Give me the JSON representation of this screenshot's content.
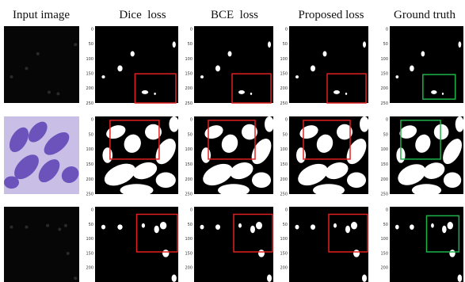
{
  "header": {
    "columns": [
      "Input image",
      "Dice  loss",
      "BCE  loss",
      "Proposed loss",
      "Ground truth"
    ]
  },
  "axis_ticks": [
    0,
    50,
    100,
    150,
    200,
    250
  ]
}
